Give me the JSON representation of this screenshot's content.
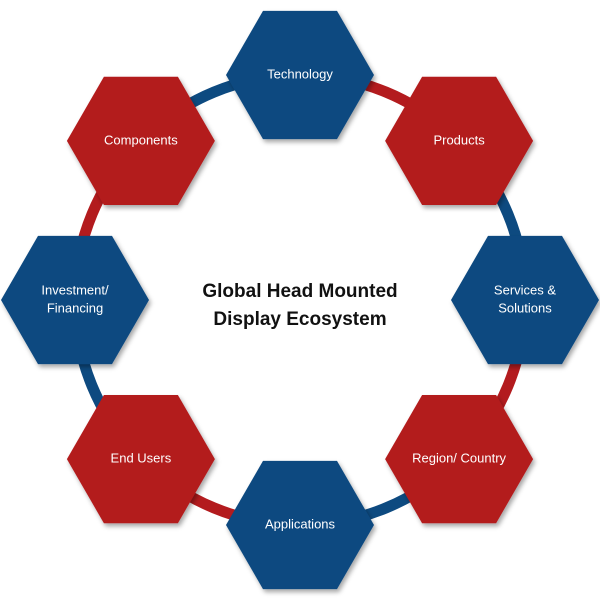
{
  "title": {
    "line1": "Global Head Mounted",
    "line2": "Display Ecosystem"
  },
  "colors": {
    "blue": "#0d4a80",
    "red": "#b31b1e",
    "text": "#ffffff",
    "title": "#111111"
  },
  "nodes": [
    {
      "id": "technology",
      "lines": [
        "Technology"
      ],
      "color": "blue"
    },
    {
      "id": "products",
      "lines": [
        "Products"
      ],
      "color": "red"
    },
    {
      "id": "services-solutions",
      "lines": [
        "Services &",
        "Solutions"
      ],
      "color": "blue"
    },
    {
      "id": "region-country",
      "lines": [
        "Region/ Country"
      ],
      "color": "red"
    },
    {
      "id": "applications",
      "lines": [
        "Applications"
      ],
      "color": "blue"
    },
    {
      "id": "end-users",
      "lines": [
        "End Users"
      ],
      "color": "red"
    },
    {
      "id": "investment-financing",
      "lines": [
        "Investment/",
        "Financing"
      ],
      "color": "blue"
    },
    {
      "id": "components",
      "lines": [
        "Components"
      ],
      "color": "red"
    }
  ]
}
